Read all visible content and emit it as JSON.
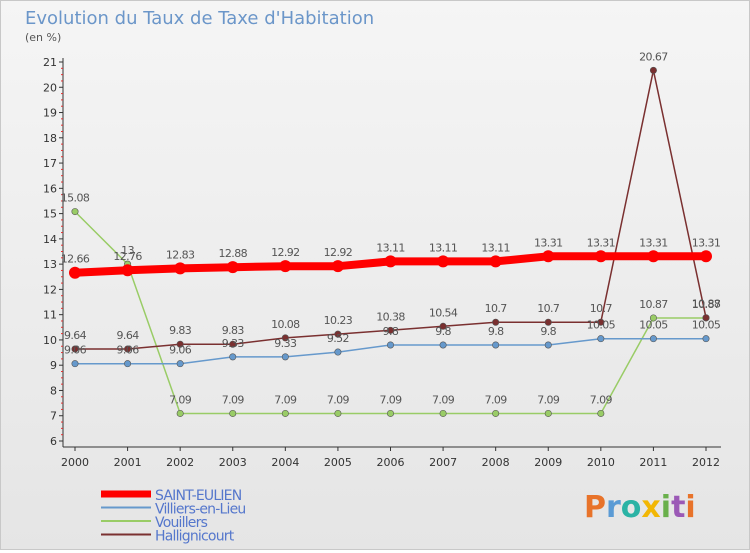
{
  "title": "Evolution du Taux de Taxe d'Habitation",
  "subtitle": "(en %)",
  "logo": {
    "text": "Proxiti",
    "colors": [
      "#e8732a",
      "#5b9bd5",
      "#2bb3a5",
      "#f2b705",
      "#6ab04c",
      "#9b59b6",
      "#e8732a"
    ]
  },
  "chart_data": {
    "type": "line",
    "title": "Evolution du Taux de Taxe d'Habitation",
    "subtitle": "(en %)",
    "xlabel": "",
    "ylabel": "",
    "categories": [
      "2000",
      "2001",
      "2002",
      "2003",
      "2004",
      "2005",
      "2006",
      "2007",
      "2008",
      "2009",
      "2010",
      "2011",
      "2012"
    ],
    "ylim": [
      6,
      21
    ],
    "yticks": [
      6,
      7,
      8,
      9,
      10,
      11,
      12,
      13,
      14,
      15,
      16,
      17,
      18,
      19,
      20,
      21
    ],
    "grid": false,
    "legend": "bottom-left",
    "series": [
      {
        "name": "SAINT-EULIEN",
        "color": "#ff0000",
        "values": [
          12.66,
          12.76,
          12.83,
          12.88,
          12.92,
          12.92,
          13.11,
          13.11,
          13.11,
          13.31,
          13.31,
          13.31,
          13.31
        ],
        "labels": [
          "12.66",
          "12.76",
          "12.83",
          "12.88",
          "12.92",
          "12.92",
          "13.11",
          "13.11",
          "13.11",
          "13.31",
          "13.31",
          "13.31",
          "13.31"
        ]
      },
      {
        "name": "Villiers-en-Lieu",
        "color": "#6699cc",
        "values": [
          9.06,
          9.06,
          9.06,
          9.33,
          9.33,
          9.52,
          9.8,
          9.8,
          9.8,
          9.8,
          10.05,
          10.05,
          10.05
        ],
        "labels": [
          "9.06",
          "9.06",
          "9.06",
          "9.33",
          "9.33",
          "9.52",
          "9.8",
          "9.8",
          "9.8",
          "9.8",
          "10.05",
          "10.05",
          "10.05"
        ]
      },
      {
        "name": "Vouillers",
        "color": "#99cc66",
        "values": [
          15.08,
          13,
          7.09,
          7.09,
          7.09,
          7.09,
          7.09,
          7.09,
          7.09,
          7.09,
          7.09,
          10.87,
          10.87
        ],
        "labels": [
          "15.08",
          "13",
          "7.09",
          "7.09",
          "7.09",
          "7.09",
          "7.09",
          "7.09",
          "7.09",
          "7.09",
          "7.09",
          "10.87",
          "10.87"
        ]
      },
      {
        "name": "Hallignicourt",
        "color": "#7a3030",
        "values": [
          9.64,
          9.64,
          9.83,
          9.83,
          10.08,
          10.23,
          10.38,
          10.54,
          10.7,
          10.7,
          10.7,
          20.67,
          10.88
        ],
        "labels": [
          "9.64",
          "9.64",
          "9.83",
          "9.83",
          "10.08",
          "10.23",
          "10.38",
          "10.54",
          "10.7",
          "10.7",
          "10.7",
          "20.67",
          "10.88"
        ]
      }
    ]
  }
}
